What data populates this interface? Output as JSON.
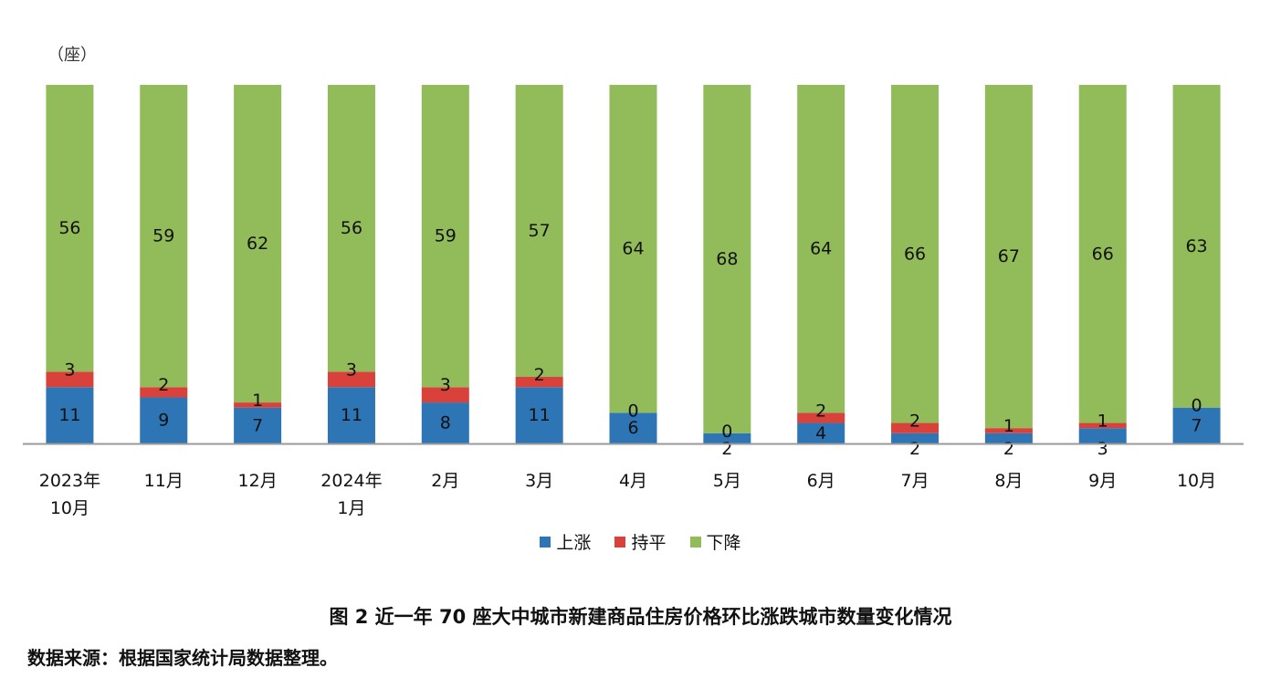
{
  "unit_label": "（座）",
  "legend": [
    {
      "label": "上涨",
      "color": "#2e75b6"
    },
    {
      "label": "持平",
      "color": "#d9413b"
    },
    {
      "label": "下降",
      "color": "#92bb5a"
    }
  ],
  "caption": "图 2 近一年 70 座大中城市新建商品住房价格环比涨跌城市数量变化情况",
  "source": "数据来源：根据国家统计局数据整理。",
  "chart_data": {
    "type": "bar",
    "stacked": true,
    "categories": [
      [
        "2023年",
        "10月"
      ],
      [
        "11月"
      ],
      [
        "12月"
      ],
      [
        "2024年",
        "1月"
      ],
      [
        "2月"
      ],
      [
        "3月"
      ],
      [
        "4月"
      ],
      [
        "5月"
      ],
      [
        "6月"
      ],
      [
        "7月"
      ],
      [
        "8月"
      ],
      [
        "9月"
      ],
      [
        "10月"
      ]
    ],
    "series": [
      {
        "name": "上涨",
        "color": "#2e75b6",
        "values": [
          11,
          9,
          7,
          11,
          8,
          11,
          6,
          2,
          4,
          2,
          2,
          3,
          7
        ]
      },
      {
        "name": "持平",
        "color": "#d9413b",
        "values": [
          3,
          2,
          1,
          3,
          3,
          2,
          0,
          0,
          2,
          2,
          1,
          1,
          0
        ]
      },
      {
        "name": "下降",
        "color": "#92bb5a",
        "values": [
          56,
          59,
          62,
          56,
          59,
          57,
          64,
          68,
          64,
          66,
          67,
          66,
          63
        ]
      }
    ],
    "ylim": [
      0,
      70
    ],
    "legend_position": "bottom"
  }
}
